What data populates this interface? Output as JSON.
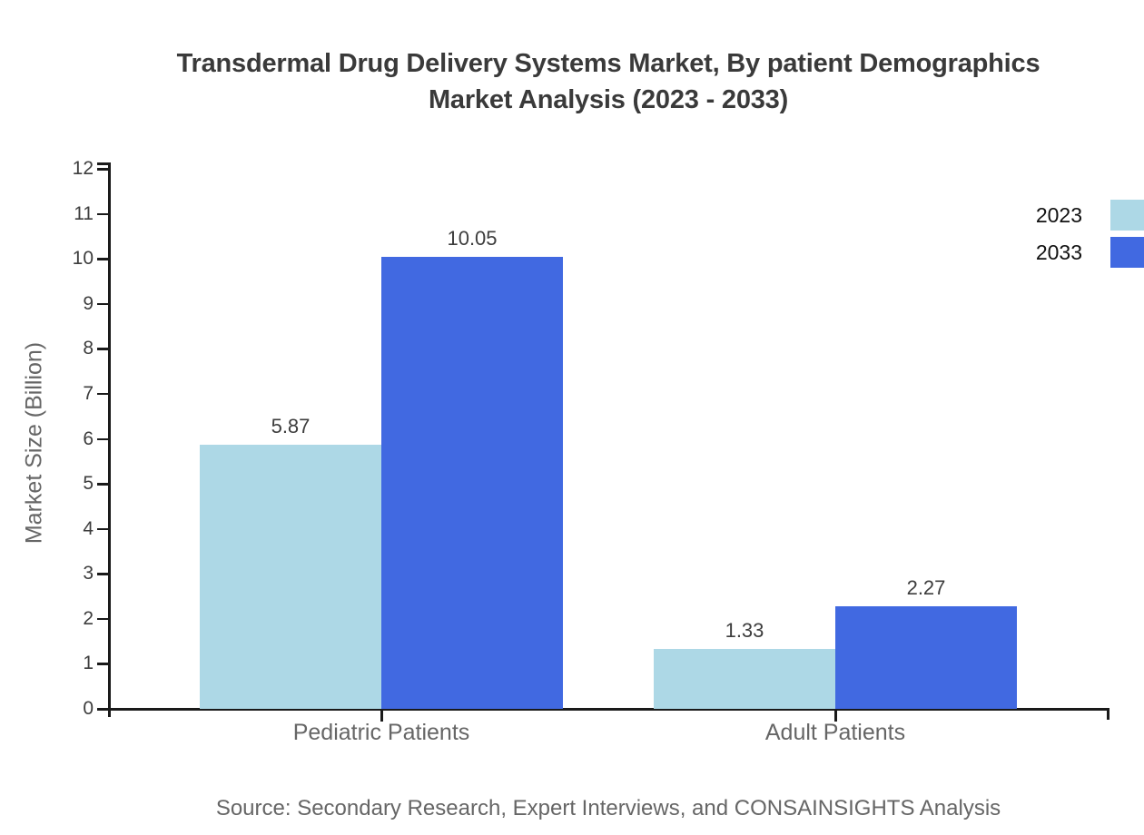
{
  "title": {
    "line1": "Transdermal Drug Delivery Systems Market, By patient Demographics",
    "line2": "Market Analysis (2023 - 2033)"
  },
  "source": "Source: Secondary Research, Expert Interviews, and CONSAINSIGHTS Analysis",
  "chart_data": {
    "type": "bar",
    "title": "Transdermal Drug Delivery Systems Market, By patient Demographics Market Analysis (2023 - 2033)",
    "categories": [
      "Pediatric Patients",
      "Adult Patients"
    ],
    "series": [
      {
        "name": "2023",
        "color": "#ADD8E6",
        "values": [
          5.87,
          1.33
        ]
      },
      {
        "name": "2033",
        "color": "#4169E1",
        "values": [
          10.05,
          2.27
        ]
      }
    ],
    "xlabel": "",
    "ylabel": "Market Size (Billion)",
    "ylim": [
      0,
      12
    ],
    "yticks": [
      0,
      1,
      2,
      3,
      4,
      5,
      6,
      7,
      8,
      9,
      10,
      11,
      12
    ],
    "value_labels": true,
    "grid": false,
    "legend_position": "top-right",
    "axis_color": "#1a1a1a"
  }
}
